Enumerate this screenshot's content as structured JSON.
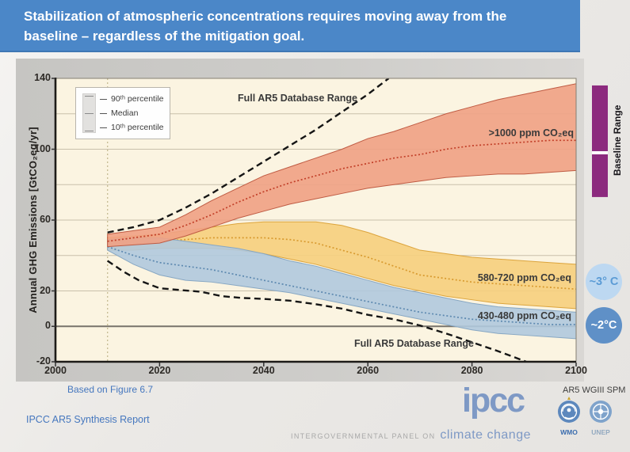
{
  "banner": {
    "title_line1": "Stabilization of atmospheric concentrations requires moving away from the",
    "title_line2": "baseline – regardless of the mitigation goal."
  },
  "sidebar": {
    "temp_3c": "~3° C",
    "temp_2c": "~2°C"
  },
  "footer": {
    "based_on": "Based on Figure 6.7",
    "report": "IPCC AR5 Synthesis Report",
    "logo_text": "ipcc",
    "tagline_prefix": "INTERGOVERNMENTAL PANEL ON",
    "tagline_main": "climate change",
    "doc_ref": "AR5 WGIII SPM",
    "wmo_label": "WMO",
    "unep_label": "UNEP"
  },
  "colors": {
    "banner_blue": "#4b87c8",
    "accent_blue": "#4577be",
    "logo_blue": "#7e99c5",
    "plot_bg": "#fbf4e1",
    "baseline_purple": "#8c2a7e"
  },
  "chart_data": {
    "type": "area",
    "ylabel": "Annual GHG Emissions [GtCO₂eq/yr]",
    "xlim": [
      2000,
      2100
    ],
    "ylim": [
      -20,
      140
    ],
    "x_ticks": [
      2000,
      2020,
      2040,
      2060,
      2080,
      2100
    ],
    "y_ticks": [
      140,
      100,
      60,
      20,
      0,
      -20
    ],
    "gridline_values": [
      120,
      100,
      80,
      60,
      40,
      20
    ],
    "zero_line": 0,
    "history_divider_year": 2010,
    "legend": {
      "items": [
        {
          "label": "90ᵗʰ percentile"
        },
        {
          "label": "Median"
        },
        {
          "label": "10ᵗʰ percentile"
        }
      ]
    },
    "years": [
      2010,
      2015,
      2020,
      2025,
      2030,
      2035,
      2040,
      2045,
      2050,
      2055,
      2060,
      2065,
      2070,
      2075,
      2080,
      2085,
      2090,
      2095,
      2100
    ],
    "bands": [
      {
        "name": ">1000 ppm CO₂eq",
        "fill": "#f0a184",
        "edge": "#bf5b43",
        "median_color": "#c23f28",
        "p90": [
          52,
          54,
          56,
          63,
          71,
          78,
          85,
          90,
          95,
          100,
          106,
          110,
          115,
          120,
          124,
          128,
          131,
          134,
          137
        ],
        "median": [
          48,
          50,
          52,
          57,
          63,
          70,
          76,
          81,
          85,
          89,
          92,
          95,
          97,
          100,
          102,
          103,
          104,
          105,
          105
        ],
        "p10": [
          45,
          46,
          47,
          51,
          56,
          61,
          65,
          69,
          72,
          75,
          78,
          80,
          82,
          84,
          85,
          86,
          86,
          87,
          88
        ]
      },
      {
        "name": "580-720 ppm CO₂eq",
        "fill": "#f6cf7d",
        "edge": "#dca43c",
        "median_color": "#d89a2f",
        "p90": [
          50,
          51,
          52,
          54,
          56,
          58,
          59,
          59,
          59,
          57,
          53,
          48,
          43,
          41,
          39,
          38,
          37,
          36,
          35
        ],
        "median": [
          47,
          47,
          48,
          49,
          50,
          50,
          50,
          49,
          47,
          43,
          39,
          34,
          29,
          27,
          25,
          24,
          23,
          22,
          21
        ],
        "p10": [
          43,
          43,
          44,
          44,
          44,
          43,
          41,
          38,
          35,
          31,
          27,
          23,
          20,
          17,
          15,
          13,
          12,
          11,
          10
        ]
      },
      {
        "name": "430-480 ppm CO₂eq",
        "fill": "#b0c9de",
        "edge": "#87a7c3",
        "median_color": "#5d89b0",
        "p90": [
          49,
          50,
          50,
          48,
          46,
          44,
          41,
          37,
          34,
          30,
          26,
          22,
          19,
          16,
          13,
          11,
          10,
          9,
          8
        ],
        "median": [
          45,
          40,
          36,
          34,
          32,
          29,
          26,
          23,
          20,
          17,
          14,
          11,
          8,
          6,
          4,
          3,
          2,
          1,
          1
        ],
        "p10": [
          43,
          35,
          29,
          26,
          25,
          23,
          21,
          19,
          16,
          13,
          10,
          7,
          4,
          1,
          -2,
          -4,
          -5,
          -6,
          -7
        ]
      }
    ],
    "full_range": {
      "label": "Full AR5 Database Range",
      "max": {
        "years": [
          2010,
          2015,
          2020,
          2025,
          2030,
          2035,
          2040,
          2045,
          2050,
          2055,
          2060,
          2064
        ],
        "values": [
          53,
          56,
          60,
          67,
          75,
          84,
          93,
          102,
          111,
          121,
          131,
          140
        ]
      },
      "min": {
        "years": [
          2010,
          2013,
          2016,
          2020,
          2024,
          2028,
          2032,
          2036,
          2040,
          2045,
          2050,
          2055,
          2060,
          2065,
          2070,
          2075,
          2080,
          2085,
          2090,
          2092
        ],
        "values": [
          37,
          31,
          26,
          21.5,
          20.5,
          19.5,
          17,
          16,
          15.5,
          14.5,
          12.5,
          10,
          6.5,
          4,
          0.5,
          -4,
          -9,
          -14,
          -19.5,
          -22
        ]
      }
    },
    "baseline_range": {
      "label": "Baseline Range",
      "color": "#8c2a7e",
      "top": 136,
      "bottom": 73,
      "median": 98
    }
  }
}
